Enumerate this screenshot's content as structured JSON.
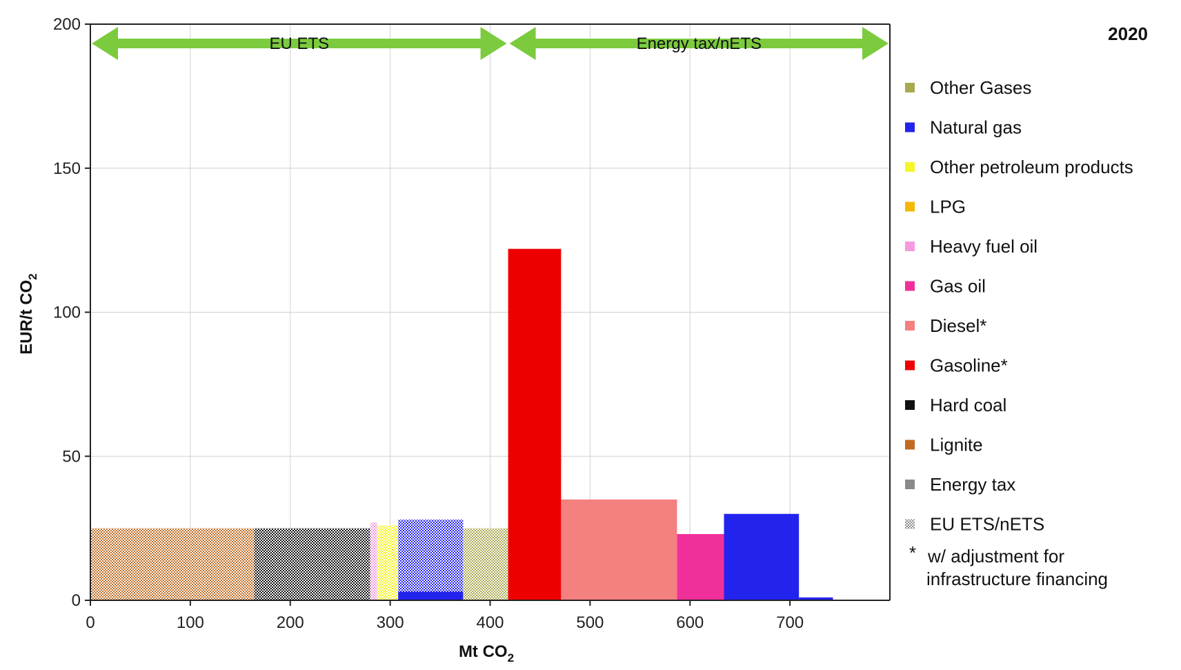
{
  "chart_data": {
    "type": "bar",
    "subtype": "variable-width stacked bars (marginal abatement style)",
    "year_label": "2020",
    "xlabel": "Mt CO",
    "xlabel_sub": "2",
    "ylabel": "EUR/t CO",
    "ylabel_sub": "2",
    "xlim": [
      0,
      800
    ],
    "ylim": [
      0,
      200
    ],
    "xticks": [
      0,
      100,
      200,
      300,
      400,
      500,
      600,
      700
    ],
    "yticks": [
      0,
      50,
      100,
      150,
      200
    ],
    "grid": true,
    "bands": [
      {
        "label": "EU ETS",
        "x0": 0,
        "x1": 418
      },
      {
        "label": "Energy tax/nETS",
        "x0": 418,
        "x1": 800
      }
    ],
    "bars": [
      {
        "fuel": "Lignite",
        "x0": 0,
        "x1": 164,
        "segments": [
          {
            "type": "EU ETS/nETS",
            "value": 25
          }
        ]
      },
      {
        "fuel": "Hard coal",
        "x0": 164,
        "x1": 280,
        "segments": [
          {
            "type": "EU ETS/nETS",
            "value": 25
          }
        ]
      },
      {
        "fuel": "Heavy fuel oil",
        "x0": 280,
        "x1": 287,
        "segments": [
          {
            "type": "EU ETS/nETS",
            "value": 27
          }
        ]
      },
      {
        "fuel": "Other petroleum products",
        "x0": 287,
        "x1": 308,
        "segments": [
          {
            "type": "EU ETS/nETS",
            "value": 26
          }
        ]
      },
      {
        "fuel": "Natural gas",
        "x0": 308,
        "x1": 373,
        "segments": [
          {
            "type": "Energy tax",
            "value": 3
          },
          {
            "type": "EU ETS/nETS",
            "value": 25
          }
        ]
      },
      {
        "fuel": "Other Gases",
        "x0": 373,
        "x1": 418,
        "segments": [
          {
            "type": "EU ETS/nETS",
            "value": 25
          }
        ]
      },
      {
        "fuel": "Gasoline*",
        "x0": 418,
        "x1": 471,
        "segments": [
          {
            "type": "Energy tax",
            "value": 122
          }
        ]
      },
      {
        "fuel": "Diesel*",
        "x0": 471,
        "x1": 587,
        "segments": [
          {
            "type": "Energy tax",
            "value": 35
          }
        ]
      },
      {
        "fuel": "Gas oil",
        "x0": 587,
        "x1": 634,
        "segments": [
          {
            "type": "Energy tax",
            "value": 23
          }
        ]
      },
      {
        "fuel": "Natural gas",
        "x0": 634,
        "x1": 709,
        "segments": [
          {
            "type": "Energy tax",
            "value": 30
          }
        ]
      },
      {
        "fuel": "Natural gas",
        "x0": 709,
        "x1": 743,
        "segments": [
          {
            "type": "Energy tax",
            "value": 1
          }
        ]
      }
    ],
    "legend": [
      {
        "label": "Other Gases",
        "color": "#a8a850"
      },
      {
        "label": "Natural gas",
        "color": "#2323ee"
      },
      {
        "label": "Other petroleum products",
        "color": "#f5f52a"
      },
      {
        "label": "LPG",
        "color": "#f5b800"
      },
      {
        "label": "Heavy fuel oil",
        "color": "#f59ae0"
      },
      {
        "label": "Gas oil",
        "color": "#f0309a"
      },
      {
        "label": "Diesel*",
        "color": "#f58080"
      },
      {
        "label": "Gasoline*",
        "color": "#ee0000"
      },
      {
        "label": "Hard coal",
        "color": "#111111"
      },
      {
        "label": "Lignite",
        "color": "#c06a20"
      },
      {
        "label": "Energy tax",
        "color": "#8a8a8a"
      },
      {
        "label": "EU ETS/nETS",
        "color": "#cccccc",
        "pattern": true
      }
    ],
    "footnote_mark": "*",
    "footnote_line1": "w/ adjustment for",
    "footnote_line2": "infrastructure financing",
    "legend_placement": "right"
  }
}
